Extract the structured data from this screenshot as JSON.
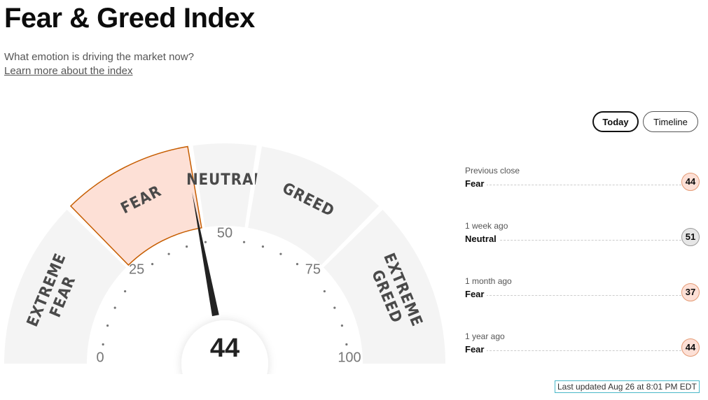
{
  "header": {
    "title": "Fear & Greed Index",
    "subtitle": "What emotion is driving the market now?",
    "link": "Learn more about the index"
  },
  "tabs": [
    "Today",
    "Timeline"
  ],
  "gauge": {
    "value": 44,
    "min": 0,
    "max": 100,
    "ticks": [
      0,
      25,
      50,
      75,
      100
    ],
    "minor_ticks": [
      5,
      10,
      15,
      20,
      30,
      35,
      40,
      45,
      55,
      60,
      65,
      70,
      80,
      85,
      90,
      95
    ],
    "zone_color": "#f4f4f4",
    "active_color": "#fde0d6",
    "active_stroke": "#c65d00",
    "zones": [
      {
        "label": [
          "EXTREME",
          "FEAR"
        ],
        "from": 0,
        "to": 25
      },
      {
        "label": [
          "FEAR"
        ],
        "from": 25,
        "to": 45
      },
      {
        "label": [
          "NEUTRAL"
        ],
        "from": 45,
        "to": 55
      },
      {
        "label": [
          "GREED"
        ],
        "from": 55,
        "to": 75
      },
      {
        "label": [
          "EXTREME",
          "GREED"
        ],
        "from": 75,
        "to": 100
      }
    ]
  },
  "history": [
    {
      "period": "Previous close",
      "rating": "Fear",
      "value": 44,
      "color": "#fde0d6",
      "border": "#e49a74"
    },
    {
      "period": "1 week ago",
      "rating": "Neutral",
      "value": 51,
      "color": "#e6e6e6",
      "border": "#9a9a9a"
    },
    {
      "period": "1 month ago",
      "rating": "Fear",
      "value": 37,
      "color": "#fde0d6",
      "border": "#e49a74"
    },
    {
      "period": "1 year ago",
      "rating": "Fear",
      "value": 44,
      "color": "#fde0d6",
      "border": "#e49a74"
    }
  ],
  "footer": "Last updated Aug 26 at 8:01 PM EDT"
}
